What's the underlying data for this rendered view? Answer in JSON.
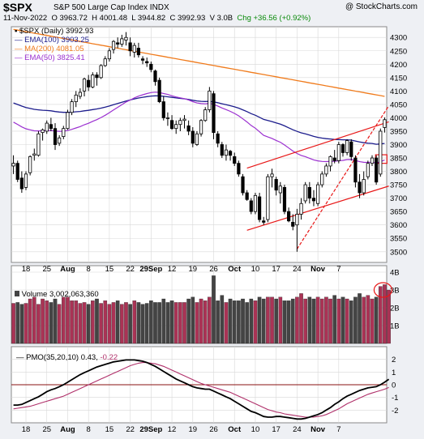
{
  "header": {
    "symbol": "$SPX",
    "name": "S&P 500 Large Cap Index",
    "exchange": "INDX",
    "copyright": "@ StockCharts.com",
    "date": "11-Nov-2022",
    "open": "O 3963.72",
    "high": "H 4001.48",
    "low": "L 3944.82",
    "close": "C 3992.93",
    "volume": "V 3.0B",
    "change": "Chg +36.56 (+0.92%)"
  },
  "legend": {
    "price": "$SPX (Daily) 3992.93",
    "ema100": "EMA(100) 3903.25",
    "ma200": "MA(200) 4081.05",
    "ema50": "EMA(50) 3825.41"
  },
  "volume_label": "Volume 3,002,063,360",
  "pmo_label_main": "PMO(35,20,10) 0.43,",
  "pmo_label_signal": "-0.22",
  "colors": {
    "background": "#eef0f4",
    "panel": "#ffffff",
    "grid": "#d8d8d8",
    "ema100": "#1c1c8c",
    "ma200": "#f07b1c",
    "ema50": "#9b30d0",
    "trend": "#e81818",
    "vol_up": "#aa3355",
    "vol_down": "#444444",
    "pmo_line": "#000000",
    "pmo_signal": "#b0306a",
    "zero_line": "#8a1010"
  },
  "x_ticks": [
    "18",
    "25",
    "Aug",
    "8",
    "15",
    "22",
    "29Sep",
    "12",
    "19",
    "26",
    "Oct",
    "10",
    "17",
    "24",
    "Nov",
    "7"
  ],
  "chart_data": [
    {
      "type": "candlestick",
      "title": "$SPX (Daily)",
      "ylim": [
        3460,
        4340
      ],
      "yticks": [
        3500,
        3550,
        3600,
        3650,
        3700,
        3750,
        3800,
        3850,
        3900,
        3950,
        4000,
        4050,
        4100,
        4150,
        4200,
        4250,
        4300
      ],
      "ohlc": [
        [
          3820,
          3860,
          3790,
          3830
        ],
        [
          3830,
          3840,
          3760,
          3770
        ],
        [
          3775,
          3800,
          3720,
          3735
        ],
        [
          3740,
          3800,
          3730,
          3790
        ],
        [
          3795,
          3860,
          3785,
          3855
        ],
        [
          3860,
          3885,
          3840,
          3865
        ],
        [
          3860,
          3950,
          3855,
          3940
        ],
        [
          3945,
          3960,
          3915,
          3955
        ],
        [
          3950,
          3990,
          3940,
          3980
        ],
        [
          3975,
          4000,
          3950,
          3960
        ],
        [
          3960,
          3980,
          3880,
          3900
        ],
        [
          3905,
          3935,
          3895,
          3925
        ],
        [
          3930,
          3970,
          3920,
          3960
        ],
        [
          3960,
          4030,
          3955,
          4020
        ],
        [
          4020,
          4070,
          4010,
          4060
        ],
        [
          4060,
          4100,
          4040,
          4085
        ],
        [
          4080,
          4110,
          4070,
          4095
        ],
        [
          4100,
          4150,
          4080,
          4145
        ],
        [
          4140,
          4160,
          4100,
          4115
        ],
        [
          4115,
          4170,
          4110,
          4160
        ],
        [
          4160,
          4170,
          4120,
          4150
        ],
        [
          4150,
          4200,
          4145,
          4195
        ],
        [
          4195,
          4230,
          4190,
          4220
        ],
        [
          4220,
          4260,
          4210,
          4250
        ],
        [
          4255,
          4290,
          4240,
          4285
        ],
        [
          4280,
          4300,
          4260,
          4275
        ],
        [
          4275,
          4310,
          4265,
          4295
        ],
        [
          4290,
          4320,
          4270,
          4300
        ],
        [
          4280,
          4300,
          4230,
          4250
        ],
        [
          4245,
          4280,
          4225,
          4270
        ],
        [
          4260,
          4280,
          4225,
          4235
        ],
        [
          4220,
          4230,
          4200,
          4215
        ],
        [
          4210,
          4225,
          4190,
          4205
        ],
        [
          4200,
          4210,
          4170,
          4180
        ],
        [
          4175,
          4180,
          4120,
          4135
        ],
        [
          4140,
          4150,
          4055,
          4060
        ],
        [
          4060,
          4080,
          3990,
          4000
        ],
        [
          4000,
          4020,
          3970,
          4000
        ],
        [
          3990,
          4010,
          3955,
          3960
        ],
        [
          3960,
          3990,
          3940,
          3975
        ],
        [
          3975,
          4000,
          3950,
          3990
        ],
        [
          3990,
          4010,
          3960,
          3995
        ],
        [
          3970,
          3990,
          3935,
          3950
        ],
        [
          3950,
          3965,
          3890,
          3905
        ],
        [
          3900,
          3950,
          3895,
          3940
        ],
        [
          3940,
          3995,
          3930,
          3990
        ],
        [
          3990,
          4040,
          3985,
          4030
        ],
        [
          4030,
          4115,
          4020,
          4100
        ],
        [
          4090,
          4100,
          3920,
          3945
        ],
        [
          3940,
          3950,
          3890,
          3905
        ],
        [
          3900,
          3910,
          3850,
          3860
        ],
        [
          3860,
          3900,
          3840,
          3880
        ],
        [
          3875,
          3880,
          3840,
          3860
        ],
        [
          3855,
          3870,
          3820,
          3830
        ],
        [
          3830,
          3840,
          3780,
          3790
        ],
        [
          3780,
          3790,
          3710,
          3720
        ],
        [
          3720,
          3730,
          3690,
          3695
        ],
        [
          3690,
          3700,
          3640,
          3650
        ],
        [
          3650,
          3720,
          3640,
          3710
        ],
        [
          3705,
          3720,
          3610,
          3620
        ],
        [
          3615,
          3630,
          3600,
          3610
        ],
        [
          3620,
          3790,
          3610,
          3780
        ],
        [
          3780,
          3810,
          3740,
          3790
        ],
        [
          3770,
          3780,
          3710,
          3730
        ],
        [
          3720,
          3760,
          3680,
          3745
        ],
        [
          3740,
          3750,
          3640,
          3650
        ],
        [
          3650,
          3665,
          3610,
          3615
        ],
        [
          3610,
          3640,
          3580,
          3595
        ],
        [
          3600,
          3660,
          3500,
          3640
        ],
        [
          3640,
          3700,
          3620,
          3680
        ],
        [
          3690,
          3760,
          3680,
          3750
        ],
        [
          3740,
          3760,
          3680,
          3700
        ],
        [
          3700,
          3730,
          3670,
          3690
        ],
        [
          3680,
          3760,
          3670,
          3750
        ],
        [
          3750,
          3800,
          3740,
          3790
        ],
        [
          3790,
          3830,
          3780,
          3820
        ],
        [
          3820,
          3860,
          3800,
          3855
        ],
        [
          3850,
          3880,
          3830,
          3840
        ],
        [
          3840,
          3910,
          3830,
          3900
        ],
        [
          3900,
          3905,
          3855,
          3870
        ],
        [
          3870,
          3920,
          3860,
          3915
        ],
        [
          3910,
          3920,
          3840,
          3855
        ],
        [
          3850,
          3860,
          3740,
          3760
        ],
        [
          3760,
          3790,
          3700,
          3720
        ],
        [
          3720,
          3800,
          3710,
          3770
        ],
        [
          3780,
          3840,
          3770,
          3830
        ],
        [
          3830,
          3860,
          3820,
          3850
        ],
        [
          3850,
          3860,
          3750,
          3760
        ],
        [
          3790,
          3960,
          3780,
          3950
        ],
        [
          3963.72,
          4001.48,
          3944.82,
          3992.93
        ]
      ]
    },
    {
      "type": "bar",
      "title": "Volume",
      "ylim": [
        0,
        4
      ],
      "yticks": [
        1,
        2,
        3,
        4
      ],
      "ytick_labels": [
        "1B",
        "2B",
        "3B",
        "4B"
      ],
      "values": [
        2.25,
        2.3,
        2.2,
        2.25,
        2.5,
        2.6,
        2.2,
        2.5,
        2.4,
        2.3,
        2.5,
        2.2,
        2.6,
        2.6,
        2.4,
        2.4,
        2.25,
        2.3,
        2.2,
        2.4,
        2.5,
        2.25,
        2.4,
        2.2,
        2.3,
        2.4,
        2.2,
        2.3,
        2.2,
        2.4,
        2.3,
        2.2,
        2.25,
        2.4,
        2.3,
        2.3,
        2.5,
        2.3,
        2.4,
        2.3,
        2.3,
        2.3,
        2.5,
        2.6,
        2.3,
        2.5,
        2.4,
        2.6,
        3.8,
        2.4,
        2.7,
        2.3,
        2.5,
        2.4,
        2.4,
        2.5,
        2.3,
        2.5,
        2.4,
        2.6,
        2.5,
        2.6,
        2.6,
        2.5,
        2.6,
        2.4,
        2.4,
        2.5,
        2.6,
        2.8,
        2.5,
        2.6,
        2.5,
        2.6,
        2.5,
        2.6,
        2.5,
        2.7,
        2.5,
        2.6,
        2.5,
        2.4,
        2.6,
        2.8,
        2.6,
        2.7,
        2.5,
        2.6,
        3.2,
        3.3,
        3.0
      ],
      "up": [
        1,
        0,
        0,
        1,
        1,
        1,
        1,
        1,
        1,
        0,
        0,
        1,
        1,
        1,
        1,
        1,
        1,
        1,
        0,
        1,
        0,
        1,
        1,
        1,
        1,
        0,
        1,
        1,
        0,
        1,
        0,
        0,
        0,
        0,
        0,
        0,
        0,
        0,
        0,
        1,
        1,
        1,
        0,
        0,
        1,
        1,
        1,
        1,
        0,
        0,
        0,
        1,
        0,
        0,
        0,
        0,
        0,
        0,
        1,
        0,
        0,
        1,
        1,
        0,
        1,
        0,
        0,
        0,
        1,
        1,
        1,
        0,
        0,
        1,
        1,
        1,
        1,
        0,
        1,
        0,
        1,
        0,
        0,
        0,
        1,
        1,
        1,
        0,
        1,
        1,
        1
      ]
    },
    {
      "type": "line",
      "title": "PMO(35,20,10)",
      "ylim": [
        -3,
        3
      ],
      "yticks": [
        -2,
        -1,
        0,
        1,
        2
      ],
      "series": [
        {
          "name": "PMO(35,20,10)",
          "values": [
            -1.6,
            -1.6,
            -1.55,
            -1.4,
            -1.25,
            -1.1,
            -0.95,
            -0.75,
            -0.55,
            -0.4,
            -0.3,
            -0.15,
            0.0,
            0.2,
            0.4,
            0.6,
            0.8,
            0.95,
            1.1,
            1.25,
            1.4,
            1.5,
            1.6,
            1.7,
            1.8,
            1.85,
            1.9,
            1.95,
            1.95,
            1.95,
            1.9,
            1.85,
            1.75,
            1.6,
            1.45,
            1.25,
            1.05,
            0.85,
            0.65,
            0.45,
            0.3,
            0.15,
            0.0,
            -0.15,
            -0.25,
            -0.3,
            -0.35,
            -0.35,
            -0.5,
            -0.65,
            -0.8,
            -0.95,
            -1.1,
            -1.3,
            -1.5,
            -1.7,
            -1.9,
            -2.1,
            -2.2,
            -2.35,
            -2.5,
            -2.55,
            -2.55,
            -2.5,
            -2.5,
            -2.55,
            -2.6,
            -2.65,
            -2.7,
            -2.7,
            -2.65,
            -2.55,
            -2.45,
            -2.35,
            -2.2,
            -2.0,
            -1.8,
            -1.55,
            -1.35,
            -1.1,
            -0.9,
            -0.75,
            -0.6,
            -0.45,
            -0.35,
            -0.25,
            -0.2,
            -0.15,
            0.0,
            0.2,
            0.43
          ]
        },
        {
          "name": "Signal",
          "values": [
            -1.9,
            -1.85,
            -1.8,
            -1.75,
            -1.7,
            -1.6,
            -1.5,
            -1.4,
            -1.3,
            -1.2,
            -1.1,
            -1.0,
            -0.9,
            -0.75,
            -0.6,
            -0.45,
            -0.3,
            -0.15,
            0.0,
            0.15,
            0.3,
            0.45,
            0.6,
            0.75,
            0.9,
            1.05,
            1.2,
            1.35,
            1.5,
            1.6,
            1.7,
            1.75,
            1.75,
            1.7,
            1.65,
            1.55,
            1.45,
            1.3,
            1.15,
            1.0,
            0.85,
            0.7,
            0.55,
            0.4,
            0.25,
            0.1,
            0.0,
            -0.1,
            -0.2,
            -0.3,
            -0.4,
            -0.5,
            -0.6,
            -0.75,
            -0.9,
            -1.05,
            -1.2,
            -1.35,
            -1.5,
            -1.65,
            -1.8,
            -1.95,
            -2.05,
            -2.15,
            -2.2,
            -2.3,
            -2.35,
            -2.4,
            -2.45,
            -2.5,
            -2.55,
            -2.55,
            -2.55,
            -2.5,
            -2.45,
            -2.35,
            -2.2,
            -2.05,
            -1.9,
            -1.7,
            -1.5,
            -1.35,
            -1.2,
            -1.05,
            -0.9,
            -0.75,
            -0.65,
            -0.55,
            -0.45,
            -0.35,
            -0.22
          ]
        }
      ]
    }
  ]
}
